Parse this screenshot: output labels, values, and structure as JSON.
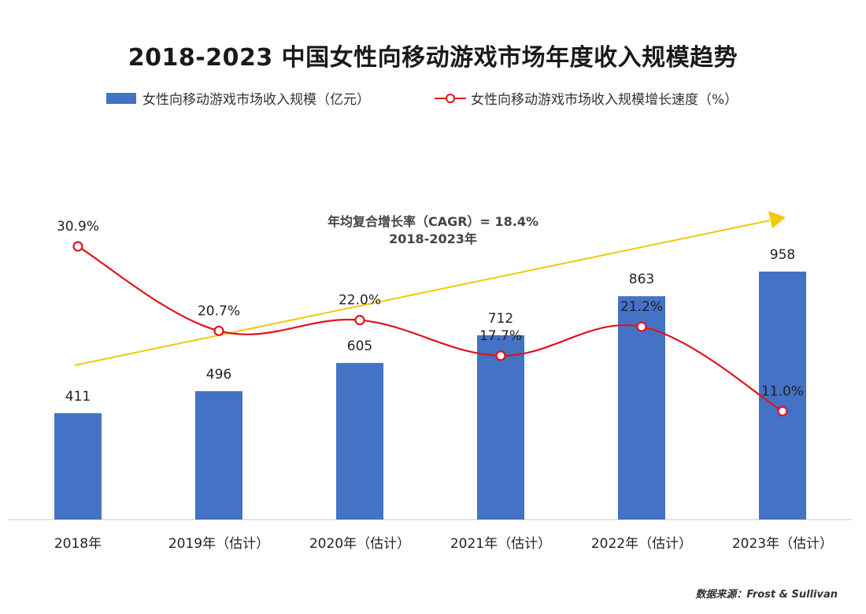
{
  "title": "2018-2023  中国女性向移动游戏市场年度收入规模趋势",
  "legend": {
    "bar_label": "女性向移动游戏市场收入规模（亿元）",
    "line_label": "女性向移动游戏市场收入规模增长速度（%）"
  },
  "cagr": {
    "line1": "年均复合增长率（CAGR）= 18.4%",
    "line2": "2018-2023年"
  },
  "source": "数据来源：Frost & Sullivan",
  "colors": {
    "bar": "#4472c4",
    "line": "#e0141e",
    "trend": "#f2c80f"
  },
  "chart_data": {
    "type": "bar",
    "categories": [
      "2018年",
      "2019年（估计）",
      "2020年（估计）",
      "2021年（估计）",
      "2022年（估计）",
      "2023年（估计）"
    ],
    "series": [
      {
        "name": "女性向移动游戏市场收入规模（亿元）",
        "type": "bar",
        "values": [
          411,
          496,
          605,
          712,
          863,
          958
        ],
        "labels": [
          "411",
          "496",
          "605",
          "712",
          "863",
          "958"
        ]
      },
      {
        "name": "女性向移动游戏市场收入规模增长速度（%）",
        "type": "line",
        "values": [
          30.9,
          20.7,
          22.0,
          17.7,
          21.2,
          11.0
        ],
        "labels": [
          "30.9%",
          "20.7%",
          "22.0%",
          "17.7%",
          "21.2%",
          "11.0%"
        ]
      }
    ],
    "annotation": "年均复合增长率（CAGR）= 18.4% 2018-2023年",
    "legend_position": "top",
    "grid": false
  }
}
